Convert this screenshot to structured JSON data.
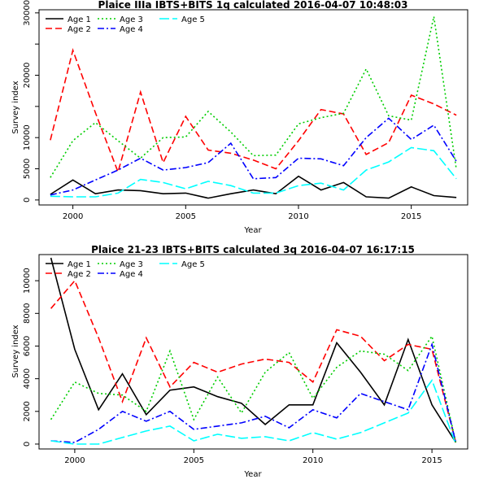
{
  "chart_data": [
    {
      "type": "line",
      "title": "Plaice IIIa IBTS+BITS 1q calculated 2016-04-07 10:48:03",
      "xlabel": "Year",
      "ylabel": "Survey index",
      "xlim": [
        1998.5,
        2017.5
      ],
      "ylim": [
        -800,
        30500
      ],
      "xticks": [
        2000,
        2005,
        2010,
        2015
      ],
      "yticks": [
        0,
        5000,
        10000,
        20000,
        30000
      ],
      "yminorticks": [
        15000,
        25000
      ],
      "legend": "top-left",
      "x": [
        1999,
        2000,
        2001,
        2002,
        2003,
        2004,
        2005,
        2006,
        2007,
        2008,
        2009,
        2010,
        2011,
        2012,
        2013,
        2014,
        2015,
        2016,
        2017
      ],
      "series": [
        {
          "name": "Age 1",
          "color": "#000000",
          "dash": "",
          "values": [
            900,
            3200,
            1000,
            1600,
            1500,
            1000,
            1100,
            300,
            1000,
            1600,
            1000,
            3800,
            1600,
            2800,
            500,
            300,
            2100,
            700,
            400
          ]
        },
        {
          "name": "Age 2",
          "color": "#ff0000",
          "dash": "8,4",
          "values": [
            9600,
            24000,
            14000,
            4500,
            17300,
            6000,
            13400,
            8000,
            7500,
            6400,
            5000,
            9500,
            14500,
            13800,
            7300,
            9200,
            16800,
            15400,
            13600
          ]
        },
        {
          "name": "Age 3",
          "color": "#00cd00",
          "dash": "2,3",
          "values": [
            3600,
            9500,
            12400,
            9500,
            6700,
            10000,
            10100,
            14200,
            10900,
            7100,
            7200,
            12200,
            13200,
            13900,
            21000,
            13500,
            12800,
            29400,
            4900
          ]
        },
        {
          "name": "Age 4",
          "color": "#0000ff",
          "dash": "8,3,2,3",
          "values": [
            800,
            1600,
            3200,
            4800,
            6700,
            4800,
            5200,
            6000,
            9100,
            3400,
            3600,
            6700,
            6600,
            5500,
            10000,
            13100,
            9700,
            12000,
            6200
          ]
        },
        {
          "name": "Age 5",
          "color": "#00ffff",
          "dash": "12,4",
          "values": [
            600,
            500,
            500,
            1100,
            3300,
            2800,
            1800,
            3000,
            2300,
            1100,
            1100,
            2300,
            2700,
            1600,
            4800,
            6100,
            8400,
            7900,
            3400
          ]
        }
      ]
    },
    {
      "type": "line",
      "title": "Plaice 21-23 IBTS+BITS calculated 3q 2016-04-07 16:17:15",
      "xlabel": "Year",
      "ylabel": "Survey index",
      "xlim": [
        1998.5,
        2016.5
      ],
      "ylim": [
        -300,
        11600
      ],
      "xticks": [
        2000,
        2005,
        2010,
        2015
      ],
      "yticks": [
        0,
        2000,
        4000,
        6000,
        8000,
        10000
      ],
      "legend": "top-left",
      "x": [
        1999,
        2000,
        2001,
        2002,
        2003,
        2004,
        2005,
        2006,
        2007,
        2008,
        2009,
        2010,
        2011,
        2012,
        2013,
        2014,
        2015,
        2016
      ],
      "series": [
        {
          "name": "Age 1",
          "color": "#000000",
          "dash": "",
          "values": [
            11400,
            5800,
            2100,
            4300,
            1800,
            3300,
            3500,
            2900,
            2500,
            1200,
            2400,
            2400,
            6200,
            4400,
            2400,
            6400,
            2400,
            100
          ]
        },
        {
          "name": "Age 2",
          "color": "#ff0000",
          "dash": "8,4",
          "values": [
            8300,
            10000,
            6500,
            2600,
            6500,
            3500,
            5000,
            4400,
            4900,
            5200,
            5000,
            3800,
            7000,
            6600,
            5100,
            6100,
            5800,
            100
          ]
        },
        {
          "name": "Age 3",
          "color": "#00cd00",
          "dash": "2,3",
          "values": [
            1500,
            3800,
            3100,
            3000,
            2000,
            5700,
            1500,
            4100,
            1900,
            4400,
            5600,
            2800,
            4700,
            5700,
            5500,
            4500,
            6600,
            100
          ]
        },
        {
          "name": "Age 4",
          "color": "#0000ff",
          "dash": "8,3,2,3",
          "values": [
            200,
            100,
            900,
            2000,
            1400,
            2000,
            900,
            1100,
            1300,
            1700,
            1000,
            2100,
            1600,
            3100,
            2600,
            2100,
            6100,
            100
          ]
        },
        {
          "name": "Age 5",
          "color": "#00ffff",
          "dash": "12,4",
          "values": [
            200,
            0,
            0,
            400,
            800,
            1100,
            200,
            600,
            350,
            450,
            200,
            700,
            300,
            700,
            1300,
            1900,
            3900,
            0
          ]
        }
      ]
    }
  ]
}
